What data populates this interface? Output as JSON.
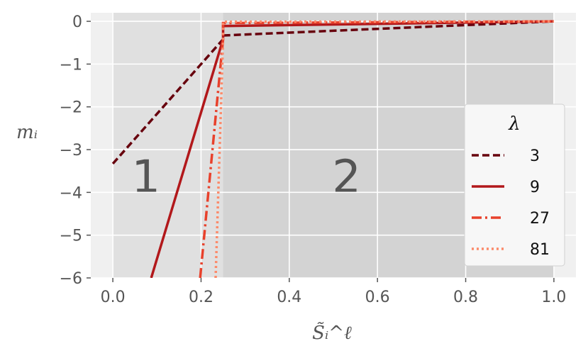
{
  "chart_data": {
    "type": "line",
    "title": "",
    "xlabel": "S̃ᵢ^ℓ",
    "ylabel": "mᵢ",
    "xlim": [
      -0.05,
      1.05
    ],
    "ylim": [
      -6,
      0.2
    ],
    "xticks": [
      0.0,
      0.2,
      0.4,
      0.6,
      0.8,
      1.0
    ],
    "xtick_labels": [
      "0.0",
      "0.2",
      "0.4",
      "0.6",
      "0.8",
      "1.0"
    ],
    "yticks": [
      0,
      -1,
      -2,
      -3,
      -4,
      -5,
      -6
    ],
    "ytick_labels": [
      "0",
      "−1",
      "−2",
      "−3",
      "−4",
      "−5",
      "−6"
    ],
    "grid": true,
    "regions": [
      {
        "label": "1",
        "x_range": [
          0.0,
          0.25
        ],
        "color": "#e0e0e0"
      },
      {
        "label": "2",
        "x_range": [
          0.25,
          1.0
        ],
        "color": "#d3d3d3"
      }
    ],
    "legend": {
      "title": "λ",
      "position": "right"
    },
    "series": [
      {
        "name": "3",
        "color": "#67000d",
        "dash": "dashed",
        "x": [
          0.0,
          0.25,
          0.25,
          1.0
        ],
        "y": [
          -3.33,
          -0.42,
          -0.33,
          0.0
        ]
      },
      {
        "name": "9",
        "color": "#b2181b",
        "dash": "solid",
        "x": [
          0.087,
          0.25,
          0.25,
          1.0
        ],
        "y": [
          -6.0,
          -0.42,
          -0.11,
          0.0
        ]
      },
      {
        "name": "27",
        "color": "#e8412c",
        "dash": "dashdot",
        "x": [
          0.198,
          0.25,
          0.25,
          1.0
        ],
        "y": [
          -6.0,
          -0.42,
          -0.04,
          0.0
        ]
      },
      {
        "name": "81",
        "color": "#fc8a6a",
        "dash": "dotted",
        "x": [
          0.233,
          0.25,
          0.25,
          1.0
        ],
        "y": [
          -6.0,
          -0.42,
          -0.01,
          0.0
        ]
      }
    ]
  }
}
